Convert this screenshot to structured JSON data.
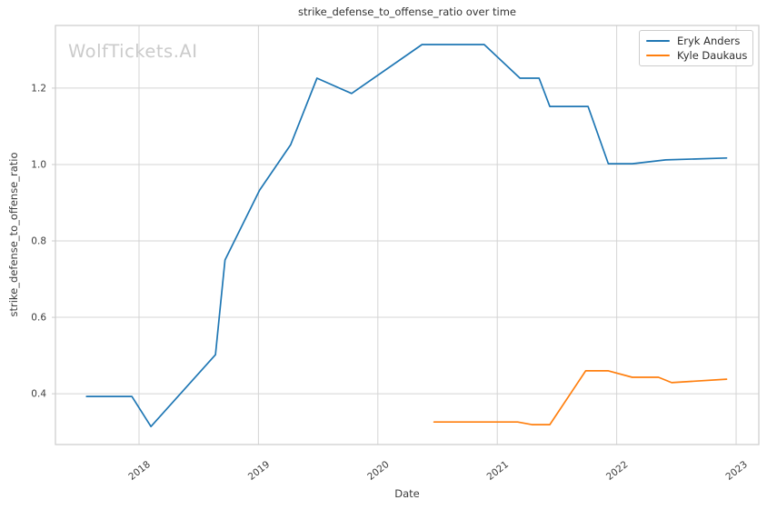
{
  "watermark": "WolfTickets.AI",
  "chart_data": {
    "type": "line",
    "title": "strike_defense_to_offense_ratio over time",
    "xlabel": "Date",
    "ylabel": "strike_defense_to_offense_ratio",
    "grid": true,
    "legend_position": "upper right",
    "xlim": [
      2017.3,
      2023.19
    ],
    "ylim": [
      0.267,
      1.364
    ],
    "x_ticks": [
      2018,
      2019,
      2020,
      2021,
      2022,
      2023
    ],
    "x_tick_labels": [
      "2018",
      "2019",
      "2020",
      "2021",
      "2022",
      "2023"
    ],
    "y_ticks": [
      0.4,
      0.6,
      0.8,
      1.0,
      1.2
    ],
    "y_tick_labels": [
      "0.4",
      "0.6",
      "0.8",
      "1.0",
      "1.2"
    ],
    "series": [
      {
        "name": "Eryk Anders",
        "color": "#1f77b4",
        "points": [
          [
            2017.56,
            0.393
          ],
          [
            2017.94,
            0.393
          ],
          [
            2018.1,
            0.314
          ],
          [
            2018.64,
            0.502
          ],
          [
            2018.72,
            0.75
          ],
          [
            2019.01,
            0.933
          ],
          [
            2019.27,
            1.052
          ],
          [
            2019.49,
            1.226
          ],
          [
            2019.78,
            1.186
          ],
          [
            2020.37,
            1.314
          ],
          [
            2020.89,
            1.314
          ],
          [
            2021.19,
            1.226
          ],
          [
            2021.35,
            1.226
          ],
          [
            2021.44,
            1.152
          ],
          [
            2021.76,
            1.152
          ],
          [
            2021.93,
            1.002
          ],
          [
            2022.13,
            1.002
          ],
          [
            2022.41,
            1.012
          ],
          [
            2022.92,
            1.017
          ]
        ]
      },
      {
        "name": "Kyle Daukaus",
        "color": "#ff7f0e",
        "points": [
          [
            2020.47,
            0.326
          ],
          [
            2021.17,
            0.326
          ],
          [
            2021.29,
            0.319
          ],
          [
            2021.44,
            0.319
          ],
          [
            2021.74,
            0.46
          ],
          [
            2021.93,
            0.46
          ],
          [
            2022.13,
            0.443
          ],
          [
            2022.35,
            0.443
          ],
          [
            2022.46,
            0.429
          ],
          [
            2022.92,
            0.438
          ]
        ]
      }
    ]
  },
  "style": {
    "grid_color": "#d4d4d4",
    "spine_color": "#cccccc",
    "tick_text_color": "#3d3d3d",
    "title_color": "#333333",
    "watermark_color": "#cbcbcb",
    "background": "#ffffff"
  }
}
